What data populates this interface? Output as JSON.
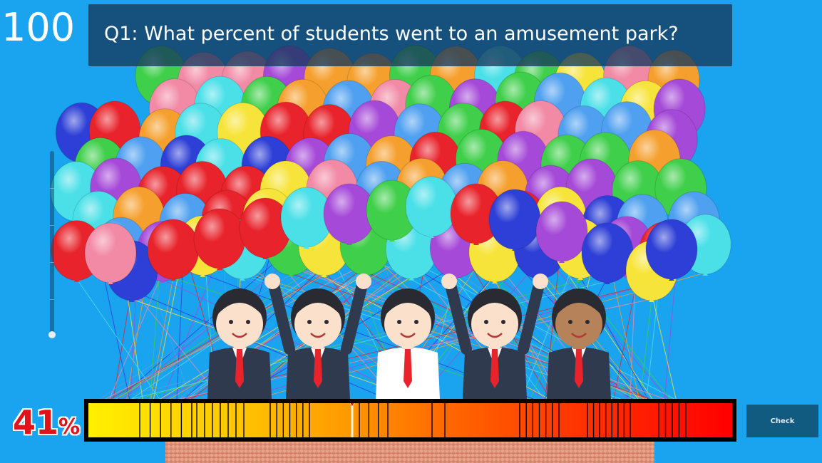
{
  "score": "100",
  "question": "Q1: What percent of students went to an amusement park?",
  "answer": {
    "value": "41",
    "unit": "%",
    "fraction": 0.41
  },
  "check_label": "Check",
  "colors": {
    "background": "#1aa3ee",
    "banner": "#16385c",
    "percent_text": "#e0121a",
    "button": "#115a80"
  },
  "icons": {
    "balloons": "balloon-bunch-icon",
    "students": "students-illustration",
    "basket": "basket-icon"
  }
}
